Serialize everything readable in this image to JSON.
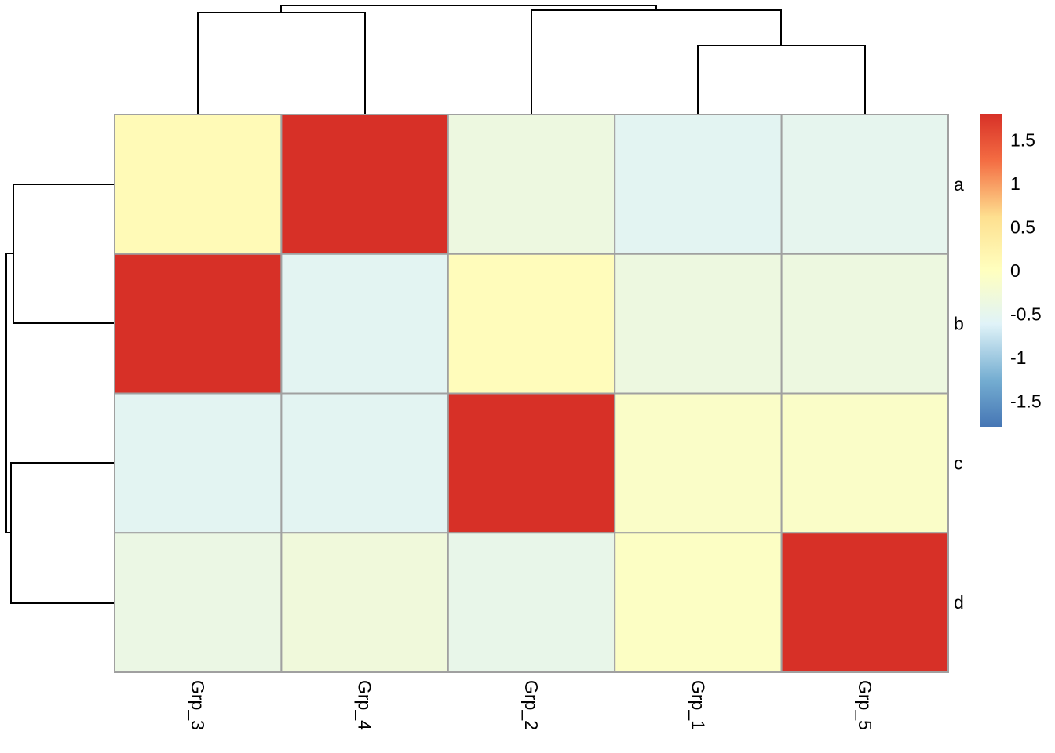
{
  "chart_data": {
    "type": "heatmap",
    "title": "",
    "columns": [
      "Grp_3",
      "Grp_4",
      "Grp_2",
      "Grp_1",
      "Grp_5"
    ],
    "rows": [
      "a",
      "b",
      "c",
      "d"
    ],
    "values": [
      [
        0.1,
        1.8,
        -0.35,
        -0.55,
        -0.5
      ],
      [
        1.8,
        -0.55,
        0.05,
        -0.35,
        -0.35
      ],
      [
        -0.55,
        -0.55,
        1.8,
        -0.1,
        -0.1
      ],
      [
        -0.4,
        -0.3,
        -0.45,
        -0.05,
        1.8
      ]
    ],
    "color_scale": {
      "low": "#4575B4",
      "mid": "#FFFFBF",
      "high": "#D73027",
      "range": [
        -1.8,
        1.8
      ]
    },
    "legend": {
      "position": "right",
      "ticks": [
        1.5,
        1,
        0.5,
        0,
        -0.5,
        -1,
        -1.5
      ],
      "tick_labels": [
        "1.5",
        "1",
        "0.5",
        "0",
        "-0.5",
        "-1",
        "-1.5"
      ]
    },
    "column_dendrogram": true,
    "row_dendrogram": true,
    "cell_border_color": "#A0A0A0"
  }
}
